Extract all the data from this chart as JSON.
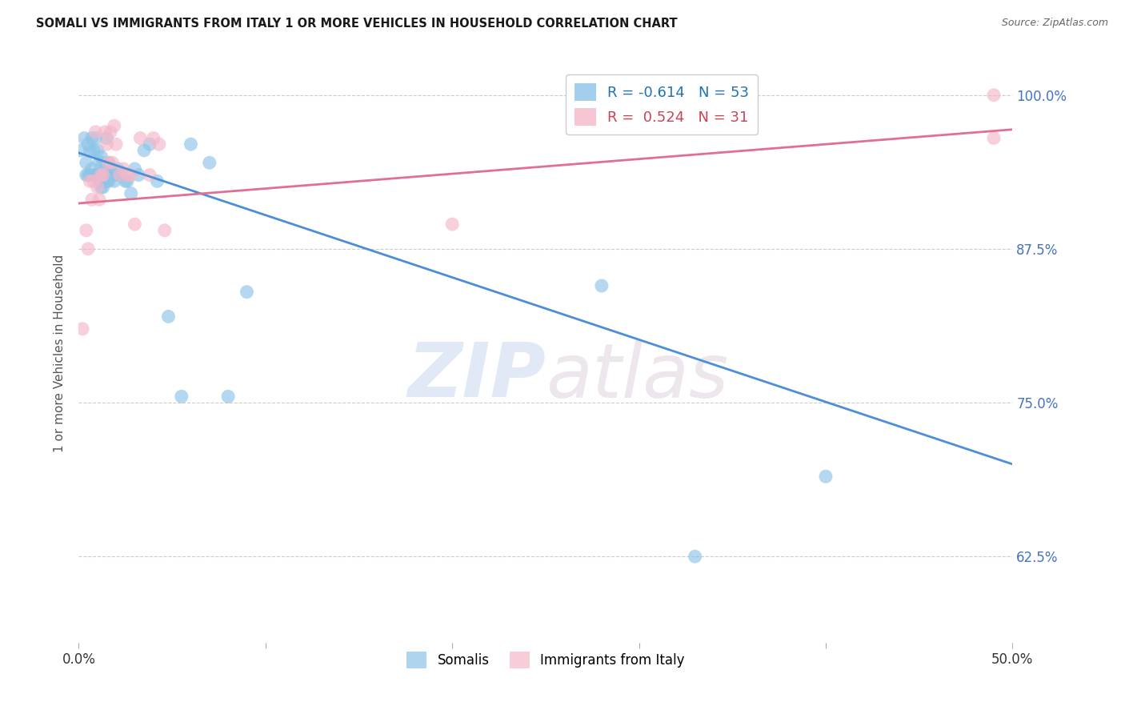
{
  "title": "SOMALI VS IMMIGRANTS FROM ITALY 1 OR MORE VEHICLES IN HOUSEHOLD CORRELATION CHART",
  "source": "Source: ZipAtlas.com",
  "ylabel": "1 or more Vehicles in Household",
  "ytick_labels": [
    "100.0%",
    "87.5%",
    "75.0%",
    "62.5%"
  ],
  "ytick_values": [
    1.0,
    0.875,
    0.75,
    0.625
  ],
  "xlim": [
    0.0,
    0.5
  ],
  "ylim": [
    0.555,
    1.025
  ],
  "legend_blue_r": "-0.614",
  "legend_blue_n": "53",
  "legend_pink_r": "0.524",
  "legend_pink_n": "31",
  "blue_color": "#8ec4e8",
  "pink_color": "#f4b8c8",
  "blue_line_color": "#4a90d9",
  "pink_line_color": "#e07090",
  "watermark_zip": "ZIP",
  "watermark_atlas": "atlas",
  "blue_scatter_x": [
    0.001,
    0.003,
    0.004,
    0.004,
    0.005,
    0.005,
    0.006,
    0.006,
    0.007,
    0.007,
    0.008,
    0.008,
    0.009,
    0.009,
    0.01,
    0.01,
    0.011,
    0.011,
    0.012,
    0.012,
    0.013,
    0.013,
    0.014,
    0.014,
    0.015,
    0.015,
    0.016,
    0.016,
    0.017,
    0.018,
    0.018,
    0.019,
    0.02,
    0.021,
    0.022,
    0.023,
    0.025,
    0.026,
    0.028,
    0.03,
    0.032,
    0.035,
    0.038,
    0.042,
    0.048,
    0.055,
    0.06,
    0.07,
    0.08,
    0.09,
    0.28,
    0.33,
    0.4
  ],
  "blue_scatter_y": [
    0.955,
    0.965,
    0.935,
    0.945,
    0.96,
    0.935,
    0.955,
    0.935,
    0.965,
    0.94,
    0.955,
    0.935,
    0.965,
    0.935,
    0.955,
    0.935,
    0.945,
    0.93,
    0.95,
    0.925,
    0.945,
    0.925,
    0.94,
    0.93,
    0.965,
    0.93,
    0.945,
    0.93,
    0.94,
    0.935,
    0.935,
    0.93,
    0.935,
    0.94,
    0.935,
    0.935,
    0.93,
    0.93,
    0.92,
    0.94,
    0.935,
    0.955,
    0.96,
    0.93,
    0.82,
    0.755,
    0.96,
    0.945,
    0.755,
    0.84,
    0.845,
    0.625,
    0.69
  ],
  "pink_scatter_x": [
    0.002,
    0.004,
    0.005,
    0.006,
    0.007,
    0.008,
    0.009,
    0.01,
    0.011,
    0.012,
    0.013,
    0.014,
    0.015,
    0.016,
    0.017,
    0.018,
    0.019,
    0.02,
    0.022,
    0.024,
    0.026,
    0.028,
    0.03,
    0.033,
    0.038,
    0.04,
    0.043,
    0.046,
    0.2,
    0.49,
    0.49
  ],
  "pink_scatter_y": [
    0.81,
    0.89,
    0.875,
    0.93,
    0.915,
    0.93,
    0.97,
    0.925,
    0.915,
    0.935,
    0.935,
    0.97,
    0.96,
    0.945,
    0.97,
    0.945,
    0.975,
    0.96,
    0.935,
    0.94,
    0.935,
    0.935,
    0.895,
    0.965,
    0.935,
    0.965,
    0.96,
    0.89,
    0.895,
    1.0,
    0.965
  ],
  "blue_trend_x": [
    0.0,
    0.5
  ],
  "blue_trend_y": [
    0.953,
    0.7
  ],
  "pink_trend_x": [
    0.0,
    0.5
  ],
  "pink_trend_y": [
    0.912,
    0.972
  ]
}
